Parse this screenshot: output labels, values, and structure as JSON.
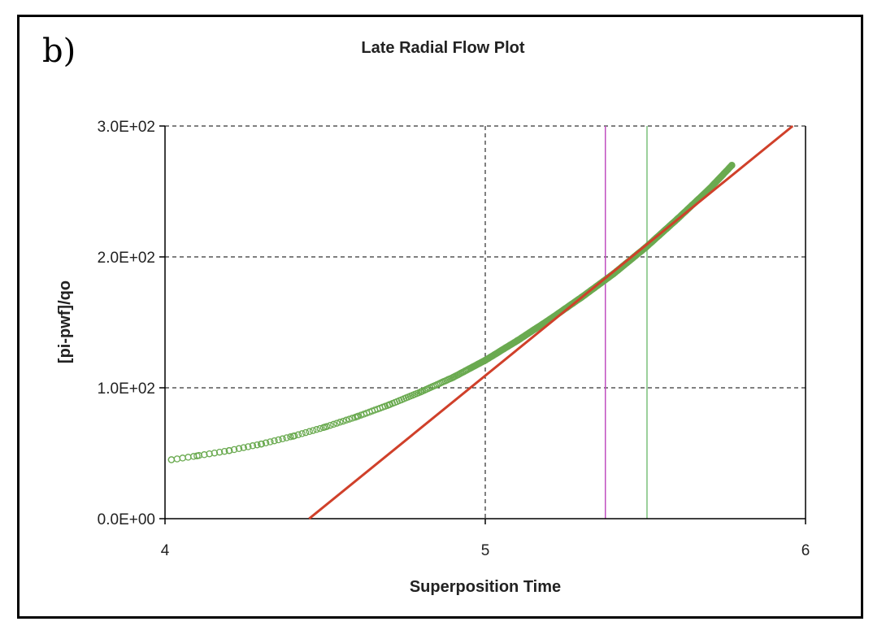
{
  "panel_label": "b)",
  "chart_data": {
    "type": "scatter",
    "title": "Late Radial Flow Plot",
    "xlabel": "Superposition Time",
    "ylabel": "[pi-pwf]/qo",
    "xlim": [
      4,
      6
    ],
    "ylim": [
      0,
      300
    ],
    "x_ticks": [
      4,
      5,
      6
    ],
    "x_tick_labels": [
      "4",
      "5",
      "6"
    ],
    "y_ticks": [
      0,
      100,
      200,
      300
    ],
    "y_tick_labels": [
      "0.0E+00",
      "1.0E+02",
      "2.0E+02",
      "3.0E+02"
    ],
    "grid": "dashed",
    "series": [
      {
        "kind": "scatter",
        "color": "#6aaa50",
        "x": [
          4.02,
          4.1,
          4.2,
          4.3,
          4.4,
          4.5,
          4.6,
          4.7,
          4.8,
          4.9,
          5.0,
          5.1,
          5.2,
          5.3,
          5.4,
          5.5,
          5.6,
          5.7,
          5.77
        ],
        "y": [
          45,
          48,
          52,
          57,
          63,
          70,
          78,
          87,
          97,
          108,
          121,
          136,
          152,
          169,
          187,
          207,
          229,
          252,
          270
        ]
      },
      {
        "kind": "line",
        "color": "#d0402a",
        "x": [
          4.45,
          5.96
        ],
        "y": [
          0,
          300
        ]
      }
    ],
    "vlines": [
      {
        "x": 5.375,
        "color": "#c050c0"
      },
      {
        "x": 5.505,
        "color": "#7cc07c"
      }
    ]
  }
}
